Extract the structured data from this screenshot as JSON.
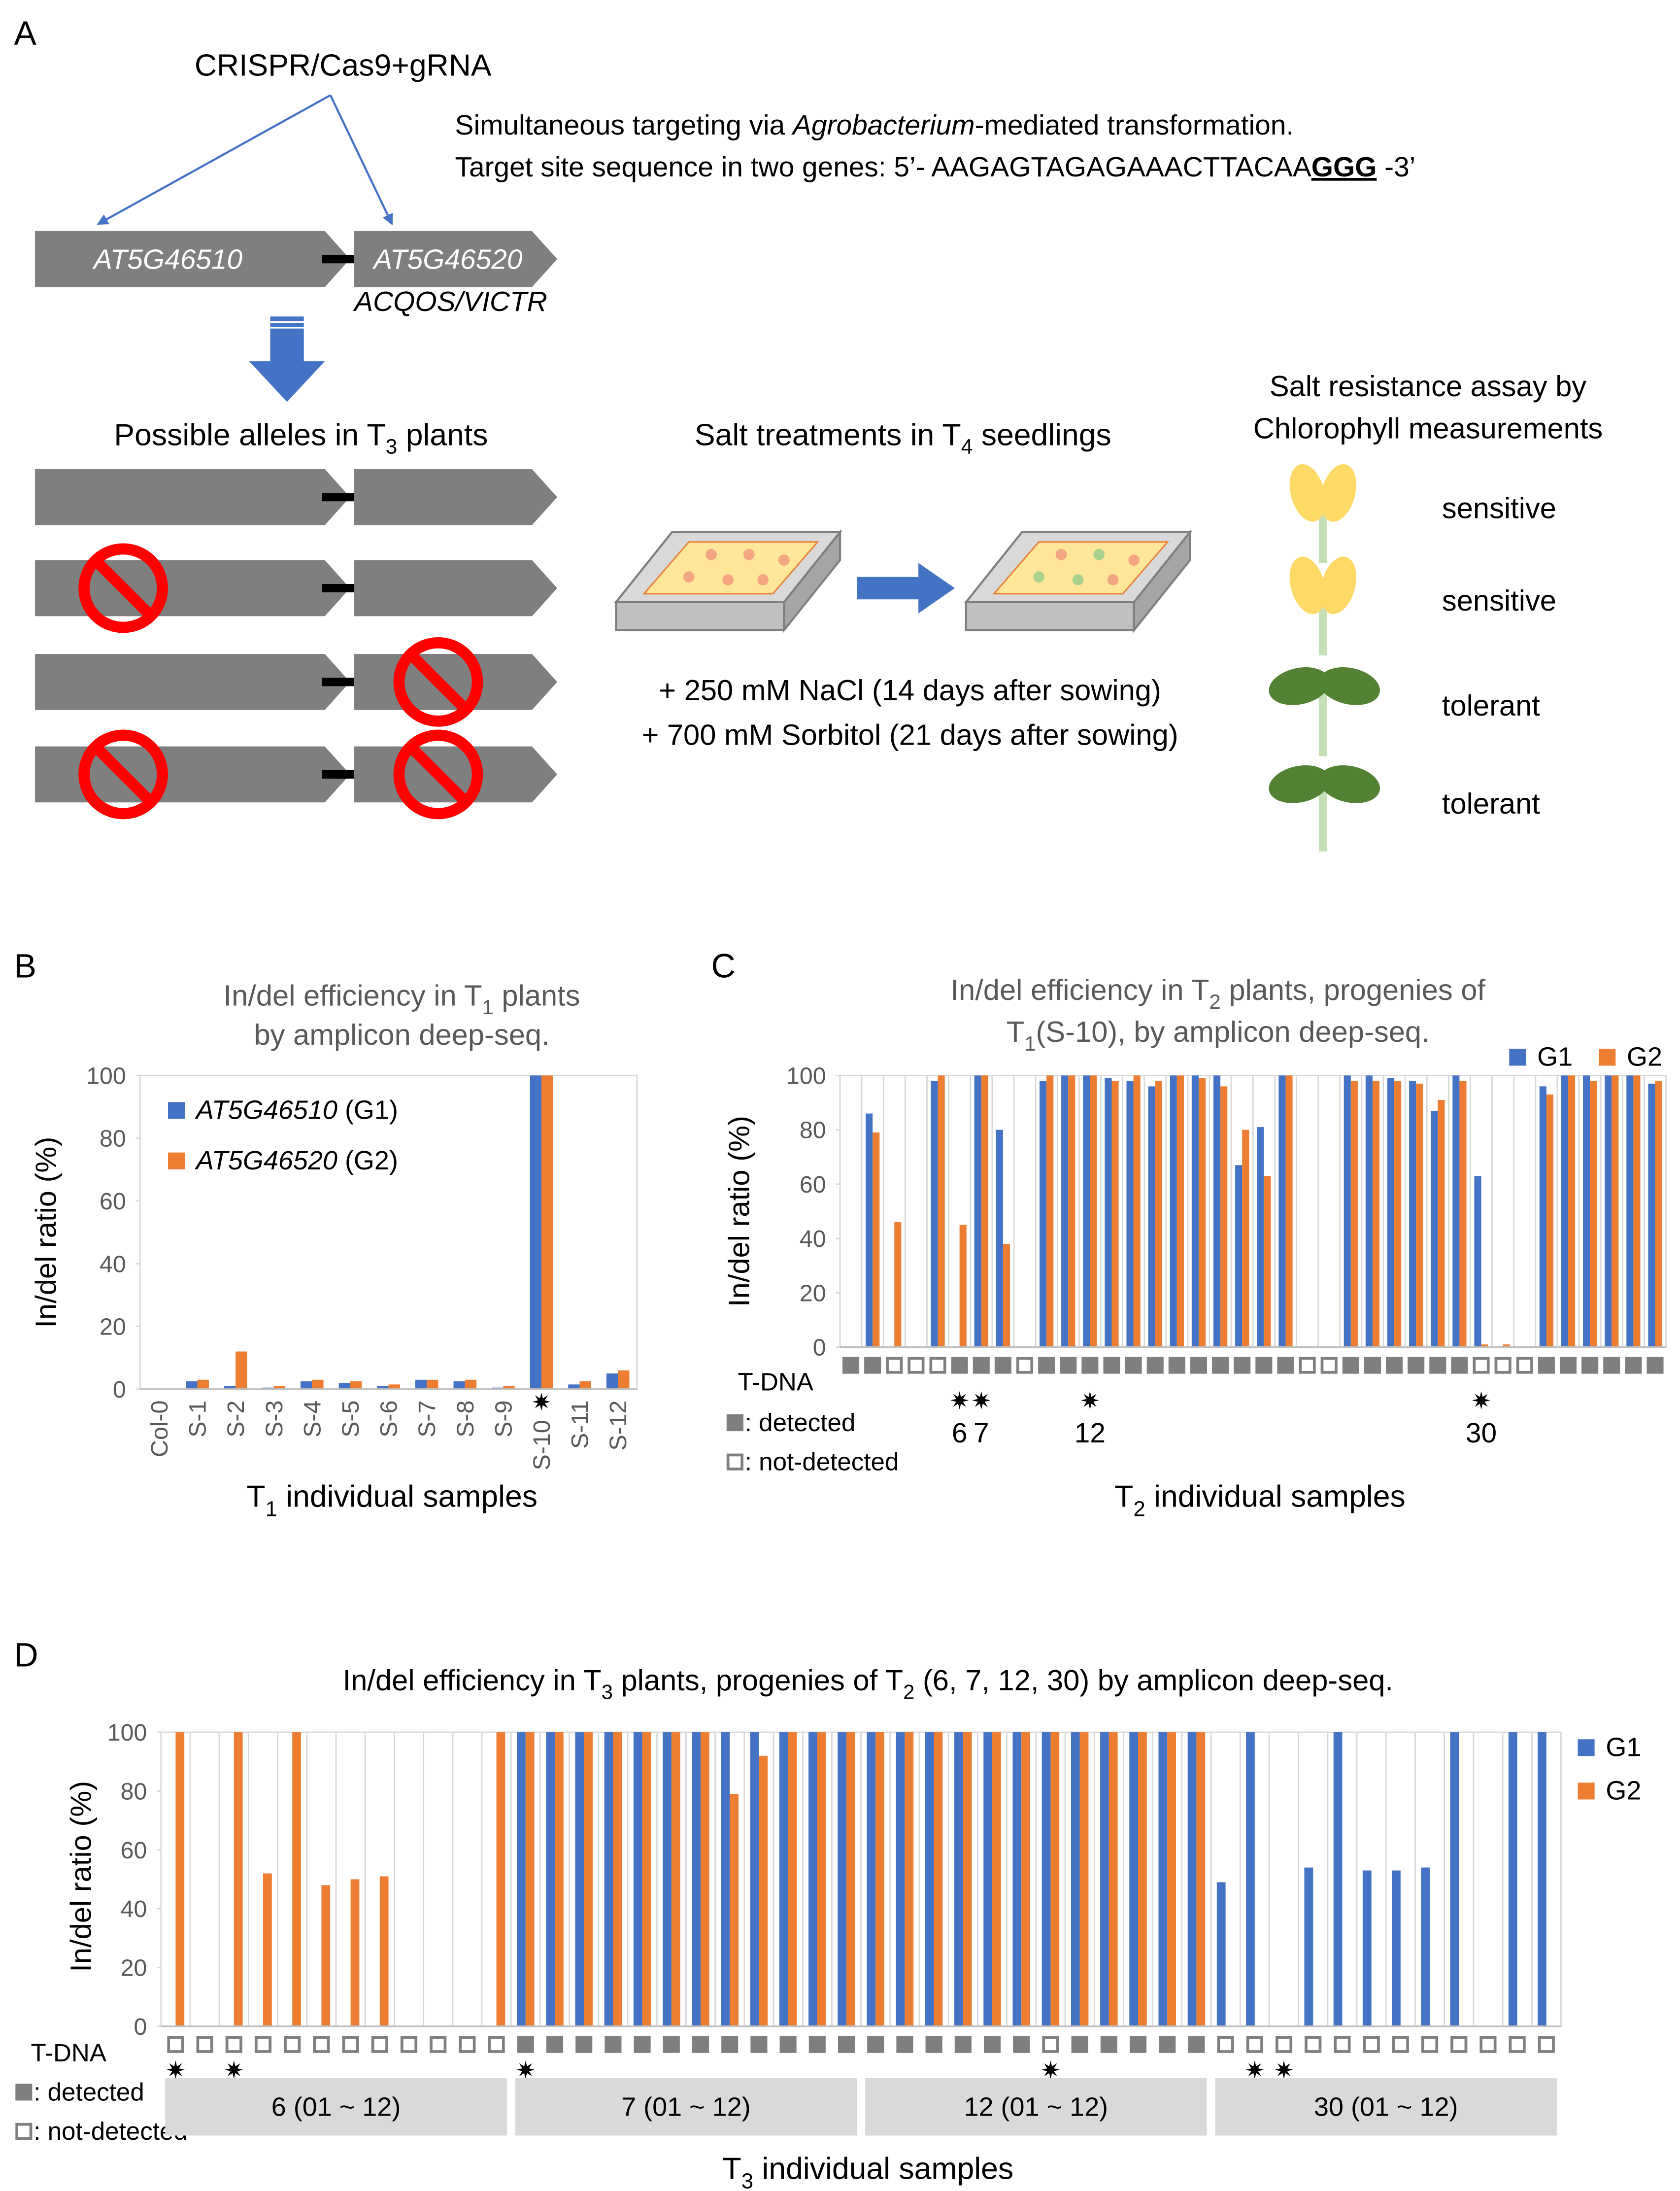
{
  "panel_labels": [
    "A",
    "B",
    "C",
    "D"
  ],
  "panel_a": {
    "crispr": "CRISPR/Cas9+gRNA",
    "targeting": [
      "Simultaneous targeting via ",
      "Agrobacterium",
      "-mediated transformation."
    ],
    "target_site": [
      "Target site sequence in two genes: 5’- AAGAGTAGAGAAACTTACAA",
      "GGG",
      " -3’"
    ],
    "genes": [
      "AT5G46510",
      "AT5G46520"
    ],
    "gene_alias": "ACQOS/VICTR",
    "alleles_title": [
      "Possible alleles in T",
      "3",
      " plants"
    ],
    "treatment_title": [
      "Salt treatments in T",
      "4",
      " seedlings"
    ],
    "treatments": [
      "+ 250 mM NaCl (14 days after sowing)",
      "+ 700 mM Sorbitol (21 days after sowing)"
    ],
    "assay_title": [
      "Salt resistance assay by",
      "Chlorophyll measurements"
    ],
    "phenotypes": [
      "sensitive",
      "sensitive",
      "tolerant",
      "tolerant"
    ]
  },
  "chart_data": [
    {
      "type": "bar",
      "title": [
        [
          "In/del efficiency in T",
          "1",
          " plants"
        ],
        [
          "by amplicon deep-seq."
        ]
      ],
      "categories": [
        "Col-0",
        "S-1",
        "S-2",
        "S-3",
        "S-4",
        "S-5",
        "S-6",
        "S-7",
        "S-8",
        "S-9",
        "S-10",
        "S-11",
        "S-12"
      ],
      "series": [
        {
          "name": "AT5G46510 (G1)",
          "color": "#4472c4",
          "values": [
            0,
            2.5,
            1,
            0.5,
            2.5,
            2,
            1,
            3,
            2.5,
            0.5,
            100,
            1.5,
            5
          ]
        },
        {
          "name": "AT5G46520 (G2)",
          "color": "#ed7d31",
          "values": [
            0,
            3,
            12,
            1,
            3,
            2.5,
            1.5,
            3,
            3,
            1,
            100,
            2.5,
            6
          ]
        }
      ],
      "ylim": [
        0,
        100
      ],
      "yticks": [
        0,
        20,
        40,
        60,
        80,
        100
      ],
      "ylabel": "In/del ratio (%)",
      "xlabel": [
        "T",
        "1",
        " individual samples"
      ],
      "legend": "upper left",
      "category_dividers": false,
      "starred": [
        false,
        false,
        false,
        false,
        false,
        false,
        false,
        false,
        false,
        false,
        true,
        false,
        false
      ]
    },
    {
      "type": "bar",
      "title": [
        [
          "In/del efficiency in T",
          "2",
          " plants, progenies of"
        ],
        [
          "T",
          "1",
          "(S-10), by amplicon deep-seq."
        ]
      ],
      "categories": [
        null,
        null,
        null,
        null,
        null,
        null,
        null,
        null,
        null,
        null,
        null,
        null,
        null,
        null,
        null,
        null,
        null,
        null,
        null,
        null,
        null,
        null,
        null,
        null,
        null,
        null,
        null,
        null,
        null,
        null,
        null,
        null,
        null,
        null,
        null,
        null,
        null,
        null
      ],
      "series": [
        {
          "name": "G1",
          "color": "#4472c4",
          "values": [
            0,
            86,
            0,
            0,
            98,
            0,
            100,
            80,
            0,
            98,
            100,
            100,
            99,
            98,
            96,
            100,
            100,
            100,
            67,
            81,
            100,
            0,
            0,
            100,
            100,
            99,
            98,
            87,
            100,
            63,
            0,
            0,
            96,
            100,
            100,
            100,
            100,
            97
          ]
        },
        {
          "name": "G2",
          "color": "#ed7d31",
          "values": [
            0,
            79,
            46,
            0,
            100,
            45,
            100,
            38,
            0,
            100,
            100,
            100,
            98,
            100,
            98,
            100,
            99,
            96,
            80,
            63,
            100,
            0,
            0,
            98,
            98,
            98,
            97,
            91,
            98,
            1,
            1,
            0,
            93,
            100,
            98,
            100,
            100,
            98
          ]
        }
      ],
      "ylim": [
        0,
        100
      ],
      "yticks": [
        0,
        20,
        40,
        60,
        80,
        100
      ],
      "ylabel": "In/del ratio (%)",
      "xlabel": [
        "T",
        "2",
        " individual samples"
      ],
      "legend": "upper right",
      "category_dividers": true,
      "tdna_label": "T-DNA",
      "tdna_legend": [
        ": detected",
        ": not-detected"
      ],
      "tdna": [
        true,
        true,
        false,
        false,
        false,
        true,
        true,
        true,
        false,
        true,
        true,
        true,
        true,
        true,
        true,
        true,
        true,
        true,
        true,
        true,
        true,
        false,
        false,
        true,
        true,
        true,
        true,
        true,
        true,
        false,
        false,
        false,
        true,
        true,
        true,
        true,
        true,
        true
      ],
      "highlighted": [
        6,
        7,
        12,
        30
      ]
    },
    {
      "type": "bar",
      "title": [
        [
          "In/del efficiency in T",
          "3",
          " plants, progenies of T",
          "2",
          " (6, 7, 12, 30) by amplicon deep-seq."
        ]
      ],
      "categories": [
        null,
        null,
        null,
        null,
        null,
        null,
        null,
        null,
        null,
        null,
        null,
        null,
        null,
        null,
        null,
        null,
        null,
        null,
        null,
        null,
        null,
        null,
        null,
        null,
        null,
        null,
        null,
        null,
        null,
        null,
        null,
        null,
        null,
        null,
        null,
        null,
        null,
        null,
        null,
        null,
        null,
        null,
        null,
        null,
        null,
        null,
        null,
        null
      ],
      "series": [
        {
          "name": "G1",
          "color": "#4472c4",
          "values": [
            0,
            0,
            0,
            0,
            0,
            0,
            0,
            0,
            0,
            0,
            0,
            0,
            100,
            100,
            100,
            100,
            100,
            100,
            100,
            100,
            100,
            100,
            100,
            100,
            100,
            100,
            100,
            100,
            100,
            100,
            100,
            100,
            100,
            100,
            100,
            100,
            49,
            100,
            0,
            54,
            100,
            53,
            53,
            54,
            100,
            0,
            100,
            100
          ]
        },
        {
          "name": "G2",
          "color": "#ed7d31",
          "values": [
            100,
            0,
            100,
            52,
            100,
            48,
            50,
            51,
            0,
            0,
            0,
            100,
            100,
            100,
            100,
            100,
            100,
            100,
            100,
            79,
            92,
            100,
            100,
            100,
            100,
            100,
            100,
            100,
            100,
            100,
            100,
            100,
            100,
            100,
            100,
            100,
            0,
            0,
            0,
            0,
            0,
            0,
            0,
            0,
            0,
            0,
            0,
            0
          ]
        }
      ],
      "ylim": [
        0,
        100
      ],
      "yticks": [
        0,
        20,
        40,
        60,
        80,
        100
      ],
      "ylabel": "In/del ratio (%)",
      "xlabel": [
        "T",
        "3",
        " individual samples"
      ],
      "legend": "right",
      "category_dividers": true,
      "tdna_label": "T-DNA",
      "tdna_legend": [
        ": detected",
        ": not-detected"
      ],
      "tdna": [
        false,
        false,
        false,
        false,
        false,
        false,
        false,
        false,
        false,
        false,
        false,
        false,
        true,
        true,
        true,
        true,
        true,
        true,
        true,
        true,
        true,
        true,
        true,
        true,
        true,
        true,
        true,
        true,
        true,
        true,
        false,
        true,
        true,
        true,
        true,
        true,
        false,
        false,
        false,
        false,
        false,
        false,
        false,
        false,
        false,
        false,
        false,
        false
      ],
      "starred": [
        true,
        false,
        true,
        false,
        false,
        false,
        false,
        false,
        false,
        false,
        false,
        false,
        true,
        false,
        false,
        false,
        false,
        false,
        false,
        false,
        false,
        false,
        false,
        false,
        false,
        false,
        false,
        false,
        false,
        false,
        true,
        false,
        false,
        false,
        false,
        false,
        false,
        true,
        true,
        false,
        false,
        false,
        false,
        false,
        false,
        false,
        false,
        false
      ],
      "groups": [
        "6 (01 ~ 12)",
        "7 (01 ~ 12)",
        "12 (01 ~ 12)",
        "30 (01 ~ 12)"
      ]
    }
  ]
}
